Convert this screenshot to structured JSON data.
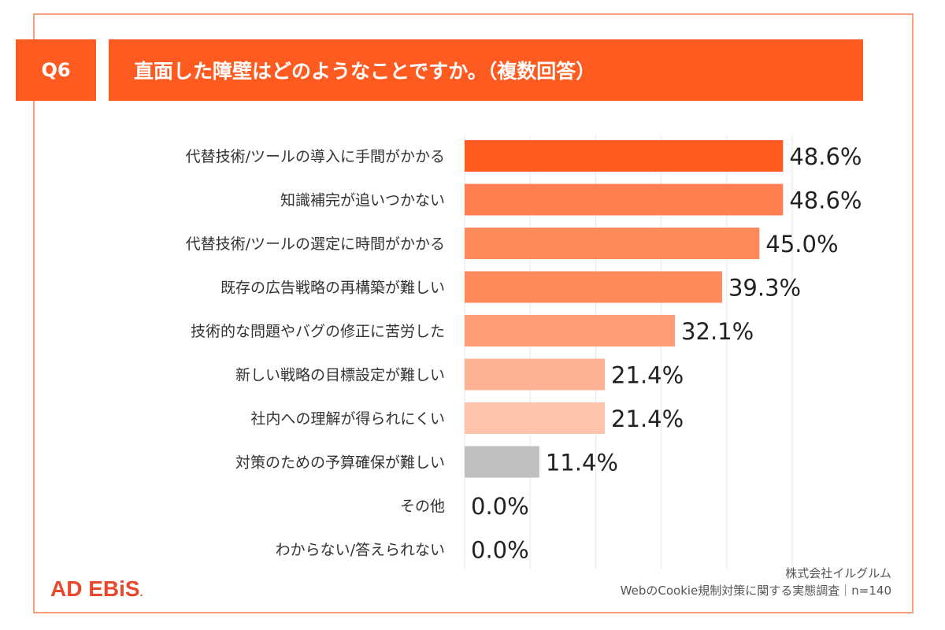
{
  "header": {
    "badge": "Q6",
    "title": "直面した障壁はどのようなことですか。（複数回答）"
  },
  "brand": {
    "logo_main": "AD EBiS",
    "logo_mark": "."
  },
  "source": {
    "company": "株式会社イルグルム",
    "survey": "WebのCookie規制対策に関する実態調査｜n=140"
  },
  "colors": {
    "accent": "#ff5a1f",
    "frame": "#f5a07a",
    "gray_bar": "#c0c0c0"
  },
  "chart_data": {
    "type": "bar",
    "orientation": "horizontal",
    "title": "",
    "xlabel": "",
    "ylabel": "",
    "xlim": [
      0,
      50
    ],
    "grid": true,
    "unit": "%",
    "categories": [
      "代替技術/ツールの導入に手間がかかる",
      "知識補完が追いつかない",
      "代替技術/ツールの選定に時間がかかる",
      "既存の広告戦略の再構築が難しい",
      "技術的な問題やバグの修正に苦労した",
      "新しい戦略の目標設定が難しい",
      "社内への理解が得られにくい",
      "対策のための予算確保が難しい",
      "その他",
      "わからない/答えられない"
    ],
    "values": [
      48.6,
      48.6,
      45.0,
      39.3,
      32.1,
      21.4,
      21.4,
      11.4,
      0.0,
      0.0
    ],
    "value_labels": [
      "48.6%",
      "48.6%",
      "45.0%",
      "39.3%",
      "32.1%",
      "21.4%",
      "21.4%",
      "11.4%",
      "0.0%",
      "0.0%"
    ],
    "bar_colors": [
      "#ff5a1f",
      "#ff7f50",
      "#ff8a5c",
      "#ff8a5c",
      "#ff9d78",
      "#ffb396",
      "#ffc2ab",
      "#c0c0c0",
      "#ffffff",
      "#ffffff"
    ]
  }
}
